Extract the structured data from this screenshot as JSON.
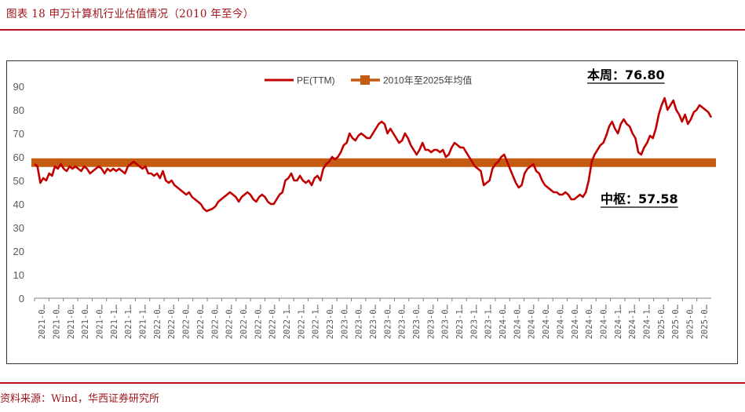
{
  "header": {
    "title": "图表 18 申万计算机行业估值情况（2010 年至今）"
  },
  "footer": {
    "source": "资料来源：Wind，华西证券研究所"
  },
  "colors": {
    "pe_line": "#c00000",
    "mean_line": "#c55a11",
    "rule": "#b5121b"
  },
  "chart_data": {
    "type": "line",
    "title": "",
    "xlabel": "",
    "ylabel": "",
    "ylim": [
      0,
      90
    ],
    "yticks": [
      0,
      10,
      20,
      30,
      40,
      50,
      60,
      70,
      80,
      90
    ],
    "grid": false,
    "legend_position": "top-center",
    "x_tick_labels": [
      "2021-0…",
      "2021-0…",
      "2021-0…",
      "2021-0…",
      "2021-0…",
      "2021-1…",
      "2021-1…",
      "2021-1…",
      "2022-0…",
      "2022-0…",
      "2022-0…",
      "2022-0…",
      "2022-0…",
      "2022-0…",
      "2022-0…",
      "2022-0…",
      "2022-0…",
      "2022-1…",
      "2022-1…",
      "2022-1…",
      "2023-0…",
      "2023-0…",
      "2023-0…",
      "2023-0…",
      "2023-0…",
      "2023-0…",
      "2023-0…",
      "2023-0…",
      "2023-0…",
      "2023-1…",
      "2023-1…",
      "2023-1…",
      "2024-0…",
      "2024-0…",
      "2024-0…",
      "2024-0…",
      "2024-0…",
      "2024-0…",
      "2024-0…",
      "2024-0…",
      "2024-1…",
      "2024-1…",
      "2024-1…",
      "2025-0…",
      "2025-0…",
      "2025-0…",
      "2025-0…"
    ],
    "series": [
      {
        "name": "PE(TTM)",
        "kind": "line",
        "values": [
          57,
          56,
          49,
          51,
          50,
          53,
          52,
          56,
          55,
          57,
          55,
          54,
          56,
          55,
          56,
          55,
          54,
          56,
          55,
          53,
          54,
          55,
          56,
          55,
          53,
          55,
          54,
          55,
          54,
          55,
          54,
          53,
          56,
          57,
          58,
          57,
          56,
          55,
          56,
          53,
          53,
          52,
          53,
          51,
          54,
          50,
          49,
          50,
          48,
          47,
          46,
          45,
          44,
          45,
          43,
          42,
          41,
          40,
          38,
          37,
          37.5,
          38,
          39,
          41,
          42,
          43,
          44,
          45,
          44,
          43,
          41,
          43,
          44,
          45,
          44,
          42,
          41,
          43,
          44,
          43,
          41,
          40,
          40,
          42,
          44,
          45,
          50,
          51,
          53,
          50,
          50,
          52,
          50,
          49,
          50,
          48,
          51,
          52,
          50,
          55,
          57,
          58,
          60,
          59,
          60,
          62,
          65,
          66,
          70,
          68,
          67,
          69,
          70,
          69,
          68,
          68,
          70,
          72,
          74,
          75,
          74,
          70,
          72,
          70,
          68,
          66,
          67,
          70,
          68,
          65,
          63,
          61,
          63,
          66,
          63,
          63,
          62,
          63,
          63,
          62,
          63,
          60,
          61,
          64,
          66,
          65,
          64,
          64,
          62,
          60,
          58,
          56,
          55,
          54,
          48,
          49,
          50,
          55,
          57,
          58,
          60,
          61,
          58,
          55,
          52,
          49,
          47,
          48,
          53,
          55,
          56,
          57,
          54,
          53,
          50,
          48,
          47,
          46,
          45,
          45,
          44,
          44,
          45,
          44,
          42,
          42,
          43,
          44,
          43,
          45,
          50,
          58,
          61,
          63,
          65,
          66,
          69,
          73,
          75,
          72,
          70,
          74,
          76,
          74,
          73,
          70,
          68,
          62,
          61,
          64,
          66,
          69,
          68,
          72,
          78,
          82,
          85,
          80,
          82,
          84,
          80,
          78,
          75,
          78,
          74,
          76,
          79,
          80,
          82,
          81,
          80,
          79,
          76.8
        ]
      },
      {
        "name": "2010年至2025年均值",
        "kind": "mean",
        "value": 57.58
      }
    ],
    "annotations": [
      {
        "text": "本周：76.80",
        "value": 76.8
      },
      {
        "text": "中枢：57.58",
        "value": 57.58
      }
    ]
  }
}
